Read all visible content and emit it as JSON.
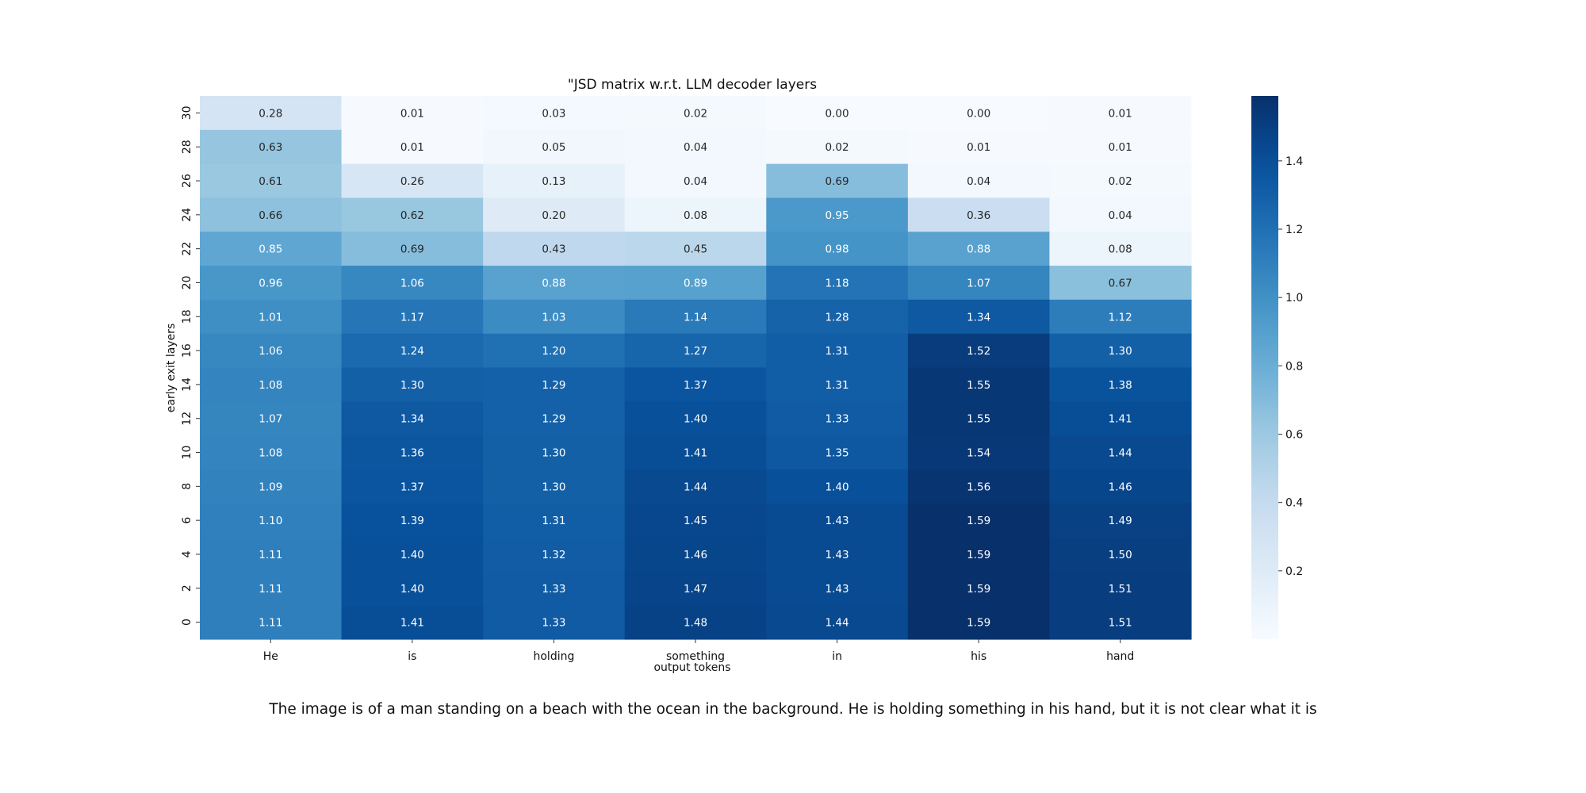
{
  "caption": "The image is of a man standing on a beach with the ocean in the background. He is holding something in his hand, but it is not clear what it is",
  "chart_data": {
    "type": "heatmap",
    "title": "\"JSD matrix w.r.t. LLM decoder layers",
    "xlabel": "output tokens",
    "ylabel": "early exit layers",
    "x_categories": [
      "He",
      "is",
      "holding",
      "something",
      "in",
      "his",
      "hand"
    ],
    "y_categories": [
      "30",
      "28",
      "26",
      "24",
      "22",
      "20",
      "18",
      "16",
      "14",
      "12",
      "10",
      "8",
      "6",
      "4",
      "2",
      "0"
    ],
    "values": [
      [
        0.28,
        0.01,
        0.03,
        0.02,
        0.0,
        0.0,
        0.01
      ],
      [
        0.63,
        0.01,
        0.05,
        0.04,
        0.02,
        0.01,
        0.01
      ],
      [
        0.61,
        0.26,
        0.13,
        0.04,
        0.69,
        0.04,
        0.02
      ],
      [
        0.66,
        0.62,
        0.2,
        0.08,
        0.95,
        0.36,
        0.04
      ],
      [
        0.85,
        0.69,
        0.43,
        0.45,
        0.98,
        0.88,
        0.08
      ],
      [
        0.96,
        1.06,
        0.88,
        0.89,
        1.18,
        1.07,
        0.67
      ],
      [
        1.01,
        1.17,
        1.03,
        1.14,
        1.28,
        1.34,
        1.12
      ],
      [
        1.06,
        1.24,
        1.2,
        1.27,
        1.31,
        1.52,
        1.3
      ],
      [
        1.08,
        1.3,
        1.29,
        1.37,
        1.31,
        1.55,
        1.38
      ],
      [
        1.07,
        1.34,
        1.29,
        1.4,
        1.33,
        1.55,
        1.41
      ],
      [
        1.08,
        1.36,
        1.3,
        1.41,
        1.35,
        1.54,
        1.44
      ],
      [
        1.09,
        1.37,
        1.3,
        1.44,
        1.4,
        1.56,
        1.46
      ],
      [
        1.1,
        1.39,
        1.31,
        1.45,
        1.43,
        1.59,
        1.49
      ],
      [
        1.11,
        1.4,
        1.32,
        1.46,
        1.43,
        1.59,
        1.5
      ],
      [
        1.11,
        1.4,
        1.33,
        1.47,
        1.43,
        1.59,
        1.51
      ],
      [
        1.11,
        1.41,
        1.33,
        1.48,
        1.44,
        1.59,
        1.51
      ]
    ],
    "colormap": "Blues",
    "colorbar": {
      "range": [
        0.0,
        1.59
      ],
      "ticks": [
        "0.2",
        "0.4",
        "0.6",
        "0.8",
        "1.0",
        "1.2",
        "1.4"
      ]
    },
    "grid": false
  }
}
